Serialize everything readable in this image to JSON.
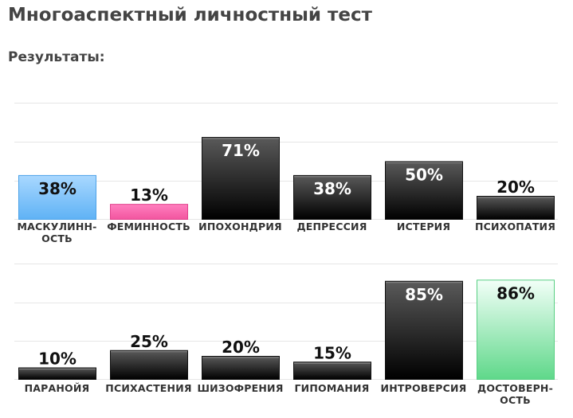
{
  "header": {
    "title": "Многоаспектный личностный тест",
    "subtitle": "Результаты:"
  },
  "colors": {
    "dark_top": "#5a5a5a",
    "dark_bottom": "#000000",
    "blue_top": "#a9d8ff",
    "blue_bottom": "#5fb2f5",
    "pink_top": "#ff7fbf",
    "pink_bottom": "#f2559f",
    "green_top": "#f2fff8",
    "green_bottom": "#5fd88a"
  },
  "chart_data": [
    {
      "type": "bar",
      "ylim": [
        0,
        100
      ],
      "grid": true,
      "categories": [
        "МАСКУЛИНН-\nОСТЬ",
        "ФЕМИННОСТЬ",
        "ИПОХОНДРИЯ",
        "ДЕПРЕССИЯ",
        "ИСТЕРИЯ",
        "ПСИХОПАТИЯ"
      ],
      "values": [
        38,
        13,
        71,
        38,
        50,
        20
      ],
      "value_labels": [
        "38%",
        "13%",
        "71%",
        "38%",
        "50%",
        "20%"
      ],
      "bar_colors": [
        "blue",
        "pink",
        "dark",
        "dark",
        "dark",
        "dark"
      ]
    },
    {
      "type": "bar",
      "ylim": [
        0,
        100
      ],
      "grid": true,
      "categories": [
        "ПАРАНОЙЯ",
        "ПСИХАСТЕНИЯ",
        "ШИЗОФРЕНИЯ",
        "ГИПОМАНИЯ",
        "ИНТРОВЕРСИЯ",
        "ДОСТОВЕРН-\nОСТЬ"
      ],
      "values": [
        10,
        25,
        20,
        15,
        85,
        86
      ],
      "value_labels": [
        "10%",
        "25%",
        "20%",
        "15%",
        "85%",
        "86%"
      ],
      "bar_colors": [
        "dark",
        "dark",
        "dark",
        "dark",
        "dark",
        "green"
      ]
    }
  ]
}
